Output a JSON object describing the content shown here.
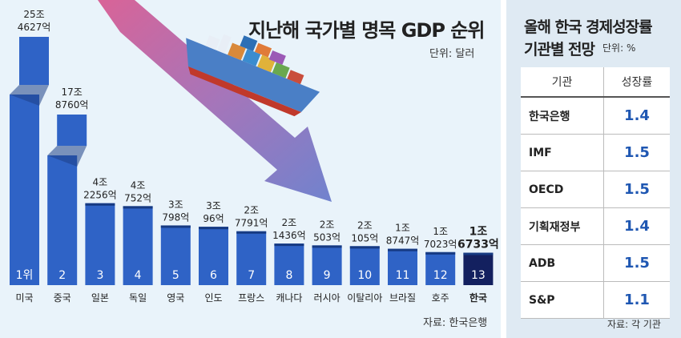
{
  "left_title": "지난해 국가별 명목 GDP 순위",
  "left_unit": "단위: 달러",
  "left_source": "자료: 한국은행",
  "chart_data": {
    "type": "bar",
    "title": "지난해 국가별 명목 GDP 순위",
    "unit": "달러",
    "categories": [
      "미국",
      "중국",
      "일본",
      "독일",
      "영국",
      "인도",
      "프랑스",
      "캐나다",
      "러시아",
      "이탈리아",
      "브라질",
      "호주",
      "한국"
    ],
    "ranks": [
      "1위",
      "2",
      "3",
      "4",
      "5",
      "6",
      "7",
      "8",
      "9",
      "10",
      "11",
      "12",
      "13"
    ],
    "value_labels": [
      [
        "25조",
        "4627억"
      ],
      [
        "17조",
        "8760억"
      ],
      [
        "4조",
        "2256억"
      ],
      [
        "4조",
        "752억"
      ],
      [
        "3조",
        "798억"
      ],
      [
        "3조",
        "96억"
      ],
      [
        "2조",
        "7791억"
      ],
      [
        "2조",
        "1436억"
      ],
      [
        "2조",
        "503억"
      ],
      [
        "2조",
        "105억"
      ],
      [
        "1조",
        "8747억"
      ],
      [
        "1조",
        "7023억"
      ],
      [
        "1조",
        "6733억"
      ]
    ],
    "values": [
      25.4627,
      17.876,
      4.2256,
      4.0752,
      3.0798,
      3.0096,
      2.7791,
      2.1436,
      2.0503,
      2.0105,
      1.8747,
      1.7023,
      1.6733
    ],
    "value_unit": "조 달러",
    "highlight": "한국",
    "bar_color": "#2f63c6",
    "highlight_color": "#13205f"
  },
  "growth_table": {
    "title_line1": "올해 한국 경제성장률",
    "title_line2": "기관별 전망",
    "unit": "단위: %",
    "headers": [
      "기관",
      "성장률"
    ],
    "rows": [
      {
        "org": "한국은행",
        "rate": "1.4"
      },
      {
        "org": "IMF",
        "rate": "1.5"
      },
      {
        "org": "OECD",
        "rate": "1.5"
      },
      {
        "org": "기획재정부",
        "rate": "1.4"
      },
      {
        "org": "ADB",
        "rate": "1.5"
      },
      {
        "org": "S&P",
        "rate": "1.1"
      }
    ],
    "source": "자료: 각 기관"
  }
}
